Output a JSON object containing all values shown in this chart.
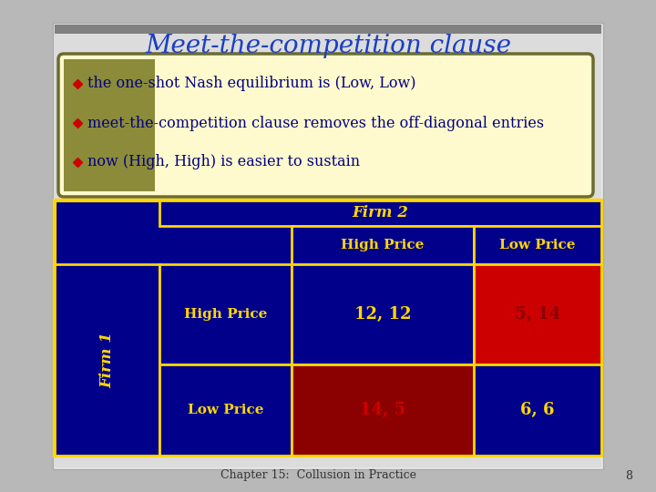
{
  "title": "Meet-the-competition clause",
  "title_color": "#1B3FC4",
  "title_fontsize": 20,
  "bullets": [
    "the one-shot Nash equilibrium is (Low, Low)",
    "meet-the-competition clause removes the off-diagonal entries",
    "now (High, High) is easier to sustain"
  ],
  "bullet_color": "#000080",
  "bullet_marker_color": "#CC0000",
  "bullet_fontsize": 11.5,
  "box_bg_left": "#8B8B3A",
  "box_bg_right": "#FFFACD",
  "box_border": "#6B6B30",
  "table_dark_blue": "#00008B",
  "table_red": "#CC0000",
  "table_dark_red": "#8B0000",
  "table_yellow_text": "#FFD700",
  "table_border": "#FFD700",
  "firm2_label": "Firm 2",
  "firm1_label": "Firm 1",
  "col_labels": [
    "High Price",
    "Low Price"
  ],
  "row_labels": [
    "High Price",
    "Low Price"
  ],
  "payoffs": [
    [
      "12, 12",
      "5, 14"
    ],
    [
      "14, 5",
      "6, 6"
    ]
  ],
  "payoff_colors": [
    [
      "#FFD700",
      "#8B0000"
    ],
    [
      "#CC0000",
      "#FFD700"
    ]
  ],
  "cell_colors": [
    [
      "#0000CD",
      "#CC0000"
    ],
    [
      "#8B0000",
      "#0000CD"
    ]
  ],
  "footer_text": "Chapter 15:  Collusion in Practice",
  "footer_page": "8",
  "bg_color": "#B8B8B8",
  "slide_bg": "#E8E8E8"
}
